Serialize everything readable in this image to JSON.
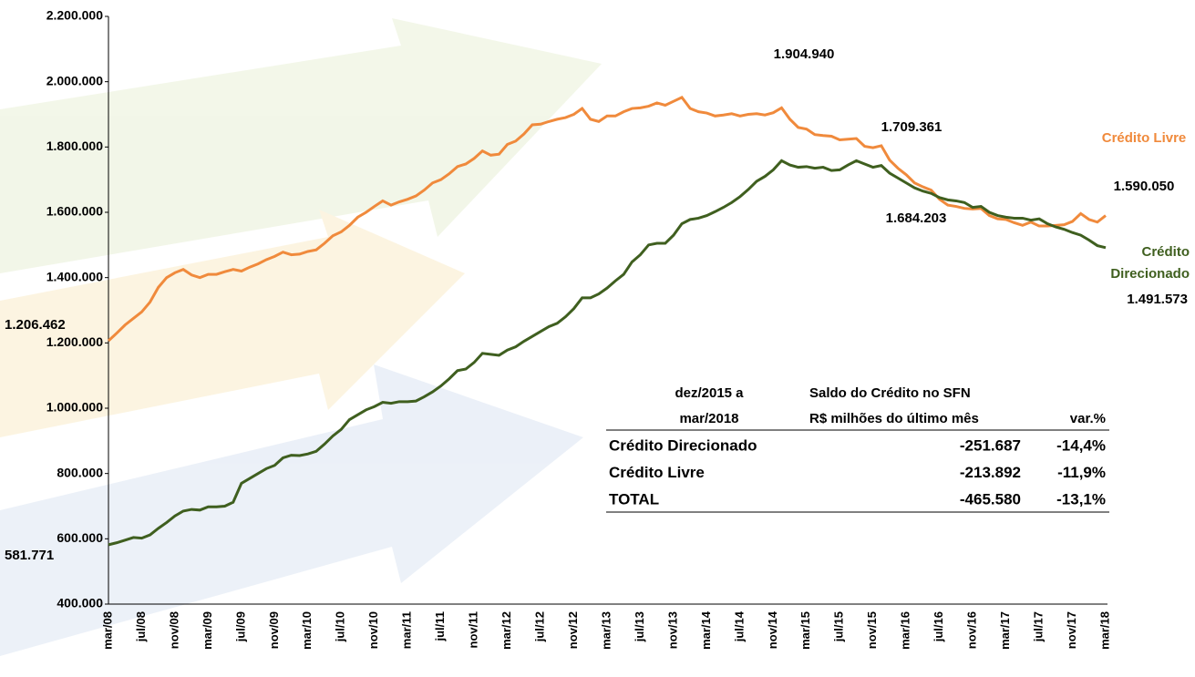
{
  "chart_data": {
    "type": "line",
    "categories": [
      "mar/08",
      null,
      null,
      null,
      "jul/08",
      null,
      null,
      null,
      "nov/08",
      null,
      null,
      null,
      "mar/09",
      null,
      null,
      null,
      "jul/09",
      null,
      null,
      null,
      "nov/09",
      null,
      null,
      null,
      "mar/10",
      null,
      null,
      null,
      "jul/10",
      null,
      null,
      null,
      "nov/10",
      null,
      null,
      null,
      "mar/11",
      null,
      null,
      null,
      "jul/11",
      null,
      null,
      null,
      "nov/11",
      null,
      null,
      null,
      "mar/12",
      null,
      null,
      null,
      "jul/12",
      null,
      null,
      null,
      "nov/12",
      null,
      null,
      null,
      "mar/13",
      null,
      null,
      null,
      "jul/13",
      null,
      null,
      null,
      "nov/13",
      null,
      null,
      null,
      "mar/14",
      null,
      null,
      null,
      "jul/14",
      null,
      null,
      null,
      "nov/14",
      null,
      null,
      null,
      "mar/15",
      null,
      null,
      null,
      "jul/15",
      null,
      null,
      null,
      "nov/15",
      null,
      null,
      null,
      "mar/16",
      null,
      null,
      null,
      "jul/16",
      null,
      null,
      null,
      "nov/16",
      null,
      null,
      null,
      "mar/17",
      null,
      null,
      null,
      "jul/17",
      null,
      null,
      null,
      "nov/17",
      null,
      null,
      null,
      "mar/18"
    ],
    "series": [
      {
        "name": "Crédito Livre",
        "color": "#f08a3c",
        "values": [
          1206462,
          1230000,
          1255000,
          1275000,
          1295000,
          1325000,
          1370000,
          1400000,
          1415000,
          1425000,
          1408000,
          1400000,
          1410000,
          1410000,
          1418000,
          1425000,
          1420000,
          1432000,
          1442000,
          1455000,
          1465000,
          1478000,
          1470000,
          1472000,
          1480000,
          1485000,
          1505000,
          1528000,
          1540000,
          1560000,
          1585000,
          1600000,
          1618000,
          1635000,
          1622000,
          1632000,
          1640000,
          1650000,
          1668000,
          1690000,
          1700000,
          1718000,
          1740000,
          1748000,
          1765000,
          1788000,
          1775000,
          1778000,
          1808000,
          1818000,
          1840000,
          1868000,
          1870000,
          1878000,
          1885000,
          1890000,
          1900000,
          1918000,
          1885000,
          1878000,
          1895000,
          1895000,
          1908000,
          1918000,
          1920000,
          1925000,
          1935000,
          1928000,
          1940000,
          1952000,
          1918000,
          1908000,
          1904000,
          1895000,
          1898000,
          1902000,
          1895000,
          1900000,
          1902000,
          1898000,
          1905000,
          1920000,
          1885000,
          1860000,
          1855000,
          1838000,
          1835000,
          1833000,
          1822000,
          1824000,
          1826000,
          1802000,
          1798000,
          1803942,
          1760000,
          1735000,
          1715000,
          1690000,
          1678000,
          1668000,
          1640000,
          1622000,
          1618000,
          1612000,
          1610000,
          1612000,
          1590000,
          1580000,
          1578000,
          1568000,
          1560000,
          1570000,
          1558000,
          1558000,
          1560000,
          1562000,
          1572000,
          1596000,
          1578000,
          1570000,
          1590050
        ],
        "value_labels": [
          "1.206.462",
          null,
          null,
          null,
          null,
          null,
          null,
          null,
          null,
          null,
          null,
          null,
          null,
          null,
          null,
          null,
          null,
          null,
          null,
          null,
          null,
          null,
          null,
          null,
          null,
          null,
          null,
          null,
          null,
          null,
          null,
          null,
          null,
          null,
          null,
          null,
          null,
          null,
          null,
          null,
          null,
          null,
          null,
          null,
          null,
          null,
          null,
          null,
          null,
          null,
          null,
          null,
          null,
          null,
          null,
          null,
          null,
          null,
          null,
          null,
          null,
          null,
          null,
          null,
          null,
          null,
          null,
          null,
          null,
          null,
          null,
          null,
          null,
          null,
          null,
          null,
          null,
          null,
          null,
          null,
          null,
          null,
          null,
          null,
          null,
          null,
          null,
          null,
          null,
          null,
          null,
          null,
          null,
          null,
          null,
          null,
          null,
          null,
          null,
          null,
          null,
          null,
          null,
          null,
          null,
          null,
          null,
          null,
          null,
          null,
          null,
          null,
          null,
          null,
          null,
          null,
          null,
          null,
          null,
          null,
          "1.590.050"
        ]
      },
      {
        "name": "Crédito Direcionado",
        "color": "#3f5f1f",
        "values": [
          581771,
          588000,
          596000,
          604000,
          602000,
          612000,
          632000,
          650000,
          670000,
          685000,
          690000,
          688000,
          698000,
          698000,
          700000,
          712000,
          770000,
          785000,
          800000,
          815000,
          825000,
          848000,
          856000,
          855000,
          860000,
          868000,
          890000,
          915000,
          935000,
          965000,
          980000,
          995000,
          1005000,
          1018000,
          1015000,
          1020000,
          1020000,
          1022000,
          1035000,
          1050000,
          1068000,
          1090000,
          1115000,
          1120000,
          1140000,
          1168000,
          1165000,
          1162000,
          1178000,
          1188000,
          1205000,
          1220000,
          1235000,
          1250000,
          1260000,
          1280000,
          1305000,
          1338000,
          1338000,
          1350000,
          1368000,
          1390000,
          1410000,
          1448000,
          1470000,
          1500000,
          1505000,
          1505000,
          1530000,
          1565000,
          1578000,
          1582000,
          1590000,
          1602000,
          1615000,
          1630000,
          1648000,
          1670000,
          1695000,
          1710000,
          1730000,
          1758000,
          1745000,
          1738000,
          1740000,
          1735000,
          1738000,
          1728000,
          1730000,
          1745000,
          1758000,
          1748000,
          1738000,
          1743260,
          1720000,
          1705000,
          1690000,
          1675000,
          1665000,
          1658000,
          1645000,
          1638000,
          1635000,
          1630000,
          1615000,
          1618000,
          1600000,
          1590000,
          1585000,
          1582000,
          1582000,
          1576000,
          1580000,
          1565000,
          1555000,
          1548000,
          1538000,
          1530000,
          1515000,
          1498000,
          1491573
        ],
        "value_labels": [
          "581.771",
          null,
          null,
          null,
          null,
          null,
          null,
          null,
          null,
          null,
          null,
          null,
          null,
          null,
          null,
          null,
          null,
          null,
          null,
          null,
          null,
          null,
          null,
          null,
          null,
          null,
          null,
          null,
          null,
          null,
          null,
          null,
          null,
          null,
          null,
          null,
          null,
          null,
          null,
          null,
          null,
          null,
          null,
          null,
          null,
          null,
          null,
          null,
          null,
          null,
          null,
          null,
          null,
          null,
          null,
          null,
          null,
          null,
          null,
          null,
          null,
          null,
          null,
          null,
          null,
          null,
          null,
          null,
          null,
          null,
          null,
          null,
          null,
          null,
          null,
          null,
          null,
          null,
          null,
          null,
          null,
          null,
          null,
          null,
          null,
          null,
          null,
          null,
          null,
          null,
          null,
          null,
          null,
          null,
          null,
          null,
          null,
          null,
          null,
          null,
          null,
          null,
          null,
          null,
          null,
          null,
          null,
          null,
          null,
          null,
          null,
          null,
          null,
          null,
          null,
          null,
          null,
          null,
          null,
          null,
          "1.491.573"
        ]
      }
    ],
    "annotations": [
      "1.904.940",
      "1.709.361",
      "1.684.203"
    ],
    "ylim": [
      400000,
      2200000
    ],
    "yticks": [
      {
        "value": 400000,
        "label": "400.000"
      },
      {
        "value": 600000,
        "label": "600.000"
      },
      {
        "value": 800000,
        "label": "800.000"
      },
      {
        "value": 1000000,
        "label": "1.000.000"
      },
      {
        "value": 1200000,
        "label": "1.200.000"
      },
      {
        "value": 1400000,
        "label": "1.400.000"
      },
      {
        "value": 1600000,
        "label": "1.600.000"
      },
      {
        "value": 1800000,
        "label": "1.800.000"
      },
      {
        "value": 2000000,
        "label": "2.000.000"
      },
      {
        "value": 2200000,
        "label": "2.200.000"
      }
    ],
    "grid": false
  },
  "table": {
    "period": [
      "dez/2015 a",
      "mar/2018"
    ],
    "heading": [
      "Saldo do Crédito no SFN",
      "R$ milhões do último mês"
    ],
    "var_header": "var.%",
    "rows": [
      [
        "Crédito Direcionado",
        "-251.687",
        "-14,4%"
      ],
      [
        "Crédito Livre",
        "-213.892",
        "-11,9%"
      ],
      [
        "TOTAL",
        "-465.580",
        "-13,1%"
      ]
    ]
  }
}
